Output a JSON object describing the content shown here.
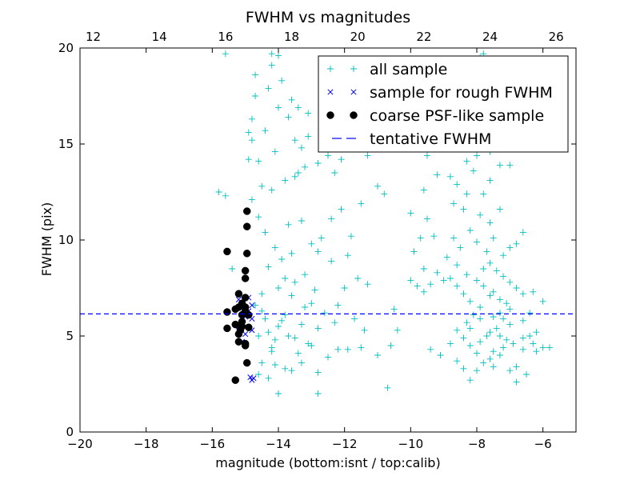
{
  "chart_data": {
    "type": "scatter",
    "title": "FWHM vs magnitudes",
    "xlabel": "magnitude (bottom:isnt / top:calib)",
    "ylabel": "FWHM (pix)",
    "xlim": [
      -20,
      -5
    ],
    "ylim": [
      0,
      20
    ],
    "x_ticks": [
      -20,
      -18,
      -16,
      -14,
      -12,
      -10,
      -8,
      -6
    ],
    "x_tick_labels": [
      "−20",
      "−18",
      "−16",
      "−14",
      "−12",
      "−10",
      "−8",
      "−6"
    ],
    "y_ticks": [
      0,
      5,
      10,
      15,
      20
    ],
    "y_tick_labels": [
      "0",
      "5",
      "10",
      "15",
      "20"
    ],
    "top_axis": {
      "ticks": [
        12,
        14,
        16,
        18,
        20,
        22,
        24,
        26
      ],
      "tick_labels": [
        "12",
        "14",
        "16",
        "18",
        "20",
        "22",
        "24",
        "26"
      ],
      "offset": 31.6
    },
    "grid": false,
    "legend_position": "upper-right",
    "reference_line": {
      "name": "tentative FWHM",
      "y": 6.15,
      "color": "#0000ff",
      "style": "dashed"
    },
    "series": [
      {
        "name": "all sample",
        "marker": "plus",
        "color": "#00bfbf",
        "points": [
          [
            -14.0,
            5.5
          ],
          [
            -13.8,
            6.1
          ],
          [
            -13.5,
            4.9
          ],
          [
            -13.2,
            6.5
          ],
          [
            -13.9,
            5.8
          ],
          [
            -14.3,
            5.2
          ],
          [
            -14.5,
            6.3
          ],
          [
            -13.7,
            5.0
          ],
          [
            -13.3,
            5.6
          ],
          [
            -13.0,
            6.7
          ],
          [
            -12.8,
            5.4
          ],
          [
            -14.1,
            4.8
          ],
          [
            -13.6,
            7.1
          ],
          [
            -14.4,
            5.9
          ],
          [
            -14.7,
            6.6
          ],
          [
            -13.1,
            4.6
          ],
          [
            -12.6,
            6.2
          ],
          [
            -12.3,
            5.7
          ],
          [
            -14.2,
            4.4
          ],
          [
            -13.4,
            4.1
          ],
          [
            -14.6,
            5.0
          ],
          [
            -14.0,
            7.5
          ],
          [
            -13.8,
            8.0
          ],
          [
            -13.5,
            7.8
          ],
          [
            -14.3,
            8.6
          ],
          [
            -13.2,
            8.2
          ],
          [
            -12.9,
            7.4
          ],
          [
            -14.5,
            7.2
          ],
          [
            -13.9,
            9.0
          ],
          [
            -14.1,
            9.6
          ],
          [
            -13.6,
            9.3
          ],
          [
            -13.0,
            9.8
          ],
          [
            -14.4,
            10.4
          ],
          [
            -13.7,
            10.8
          ],
          [
            -14.6,
            11.2
          ],
          [
            -13.3,
            11.0
          ],
          [
            -14.8,
            12.1
          ],
          [
            -14.2,
            12.6
          ],
          [
            -13.8,
            13.1
          ],
          [
            -13.4,
            13.5
          ],
          [
            -14.6,
            14.1
          ],
          [
            -14.1,
            14.6
          ],
          [
            -13.5,
            15.2
          ],
          [
            -14.4,
            15.7
          ],
          [
            -14.8,
            16.3
          ],
          [
            -14.0,
            16.9
          ],
          [
            -13.6,
            17.3
          ],
          [
            -14.3,
            17.9
          ],
          [
            -14.7,
            18.6
          ],
          [
            -14.2,
            19.1
          ],
          [
            -14.0,
            19.6
          ],
          [
            -14.2,
            19.7
          ],
          [
            -13.9,
            18.3
          ],
          [
            -14.7,
            17.5
          ],
          [
            -15.6,
            19.7
          ],
          [
            -15.8,
            12.5
          ],
          [
            -15.6,
            12.3
          ],
          [
            -15.4,
            8.5
          ],
          [
            -14.9,
            15.6
          ],
          [
            -14.8,
            15.2
          ],
          [
            -14.9,
            14.2
          ],
          [
            -14.5,
            12.8
          ],
          [
            -13.3,
            14.8
          ],
          [
            -13.1,
            15.4
          ],
          [
            -12.8,
            14.0
          ],
          [
            -13.2,
            13.8
          ],
          [
            -13.5,
            13.3
          ],
          [
            -13.1,
            16.6
          ],
          [
            -13.4,
            16.9
          ],
          [
            -13.7,
            16.4
          ],
          [
            -12.5,
            14.4
          ],
          [
            -12.3,
            13.5
          ],
          [
            -12.1,
            14.2
          ],
          [
            -11.6,
            15.2
          ],
          [
            -11.3,
            14.4
          ],
          [
            -11.0,
            12.8
          ],
          [
            -10.8,
            12.4
          ],
          [
            -11.5,
            11.9
          ],
          [
            -11.8,
            10.2
          ],
          [
            -12.1,
            11.6
          ],
          [
            -12.4,
            11.1
          ],
          [
            -12.7,
            10.1
          ],
          [
            -11.9,
            9.2
          ],
          [
            -11.6,
            8.0
          ],
          [
            -11.3,
            7.7
          ],
          [
            -12.0,
            7.5
          ],
          [
            -12.4,
            8.9
          ],
          [
            -12.8,
            9.4
          ],
          [
            -12.2,
            6.6
          ],
          [
            -11.7,
            5.9
          ],
          [
            -11.4,
            5.3
          ],
          [
            -11.9,
            4.3
          ],
          [
            -12.5,
            3.9
          ],
          [
            -12.8,
            3.1
          ],
          [
            -13.3,
            3.6
          ],
          [
            -13.8,
            3.3
          ],
          [
            -14.1,
            3.5
          ],
          [
            -14.3,
            2.8
          ],
          [
            -14.0,
            2.0
          ],
          [
            -12.8,
            2.0
          ],
          [
            -13.6,
            3.2
          ],
          [
            -14.6,
            3.0
          ],
          [
            -14.5,
            3.6
          ],
          [
            -14.2,
            4.2
          ],
          [
            -13.0,
            4.5
          ],
          [
            -12.2,
            4.3
          ],
          [
            -11.5,
            4.4
          ],
          [
            -11.0,
            4.0
          ],
          [
            -10.6,
            4.5
          ],
          [
            -10.7,
            2.3
          ],
          [
            -10.4,
            5.3
          ],
          [
            -10.5,
            6.4
          ],
          [
            -10.0,
            7.9
          ],
          [
            -9.8,
            7.6
          ],
          [
            -9.6,
            8.5
          ],
          [
            -9.9,
            9.4
          ],
          [
            -9.7,
            10.1
          ],
          [
            -10.0,
            11.4
          ],
          [
            -9.5,
            11.1
          ],
          [
            -9.3,
            10.2
          ],
          [
            -9.6,
            12.6
          ],
          [
            -9.2,
            13.4
          ],
          [
            -9.5,
            14.4
          ],
          [
            -9.0,
            14.8
          ],
          [
            -8.8,
            13.3
          ],
          [
            -8.6,
            12.9
          ],
          [
            -8.7,
            11.9
          ],
          [
            -8.4,
            11.6
          ],
          [
            -8.3,
            12.4
          ],
          [
            -8.1,
            13.6
          ],
          [
            -7.8,
            12.4
          ],
          [
            -7.6,
            13.1
          ],
          [
            -7.3,
            13.9
          ],
          [
            -7.0,
            13.9
          ],
          [
            -7.6,
            14.6
          ],
          [
            -8.0,
            14.4
          ],
          [
            -8.3,
            14.1
          ],
          [
            -8.6,
            15.1
          ],
          [
            -7.8,
            15.8
          ],
          [
            -7.9,
            11.3
          ],
          [
            -7.6,
            10.9
          ],
          [
            -7.3,
            11.6
          ],
          [
            -7.5,
            10.1
          ],
          [
            -7.0,
            9.6
          ],
          [
            -7.2,
            9.2
          ],
          [
            -6.8,
            9.8
          ],
          [
            -6.6,
            10.4
          ],
          [
            -7.7,
            9.4
          ],
          [
            -8.0,
            9.9
          ],
          [
            -8.2,
            10.5
          ],
          [
            -8.5,
            9.6
          ],
          [
            -8.7,
            10.1
          ],
          [
            -8.9,
            9.1
          ],
          [
            -8.6,
            8.7
          ],
          [
            -8.3,
            8.2
          ],
          [
            -8.0,
            7.9
          ],
          [
            -7.8,
            7.6
          ],
          [
            -7.5,
            7.3
          ],
          [
            -7.6,
            7.1
          ],
          [
            -7.3,
            6.9
          ],
          [
            -7.1,
            6.7
          ],
          [
            -7.0,
            6.4
          ],
          [
            -7.3,
            6.2
          ],
          [
            -7.5,
            6.0
          ],
          [
            -7.2,
            5.9
          ],
          [
            -7.0,
            5.6
          ],
          [
            -7.4,
            5.4
          ],
          [
            -7.6,
            5.2
          ],
          [
            -7.3,
            5.0
          ],
          [
            -7.1,
            4.8
          ],
          [
            -6.9,
            4.6
          ],
          [
            -7.2,
            4.4
          ],
          [
            -7.5,
            4.2
          ],
          [
            -7.3,
            4.0
          ],
          [
            -7.6,
            3.8
          ],
          [
            -7.8,
            3.6
          ],
          [
            -8.0,
            4.1
          ],
          [
            -8.2,
            4.5
          ],
          [
            -8.4,
            4.9
          ],
          [
            -8.6,
            5.3
          ],
          [
            -8.3,
            5.7
          ],
          [
            -8.1,
            6.1
          ],
          [
            -7.9,
            6.5
          ],
          [
            -8.2,
            6.8
          ],
          [
            -8.4,
            7.2
          ],
          [
            -8.6,
            7.6
          ],
          [
            -8.8,
            8.0
          ],
          [
            -9.0,
            7.9
          ],
          [
            -9.2,
            8.3
          ],
          [
            -9.4,
            7.7
          ],
          [
            -9.6,
            7.3
          ],
          [
            -7.8,
            8.5
          ],
          [
            -7.6,
            8.8
          ],
          [
            -7.4,
            8.4
          ],
          [
            -7.2,
            8.1
          ],
          [
            -7.0,
            7.8
          ],
          [
            -6.8,
            7.5
          ],
          [
            -6.6,
            7.2
          ],
          [
            -6.4,
            5.0
          ],
          [
            -6.3,
            4.6
          ],
          [
            -6.2,
            4.2
          ],
          [
            -6.0,
            4.4
          ],
          [
            -6.2,
            5.2
          ],
          [
            -6.6,
            4.9
          ],
          [
            -6.8,
            3.4
          ],
          [
            -6.5,
            3.0
          ],
          [
            -6.8,
            2.6
          ],
          [
            -7.5,
            3.4
          ],
          [
            -8.0,
            3.2
          ],
          [
            -8.2,
            2.7
          ],
          [
            -8.4,
            3.3
          ],
          [
            -8.6,
            3.7
          ],
          [
            -9.1,
            4.0
          ],
          [
            -9.4,
            4.3
          ],
          [
            -8.8,
            4.6
          ],
          [
            -7.0,
            3.2
          ],
          [
            -6.6,
            4.3
          ],
          [
            -5.8,
            4.4
          ],
          [
            -7.9,
            5.9
          ],
          [
            -8.2,
            5.4
          ],
          [
            -7.7,
            5.0
          ],
          [
            -7.9,
            4.7
          ],
          [
            -6.6,
            5.8
          ],
          [
            -6.4,
            6.2
          ],
          [
            -6.0,
            6.8
          ],
          [
            -6.3,
            7.3
          ],
          [
            -7.8,
            19.7
          ],
          [
            -7.9,
            19.5
          ]
        ]
      },
      {
        "name": "sample for rough FWHM",
        "marker": "x",
        "color": "#0000ff",
        "points": [
          [
            -15.1,
            6.5
          ],
          [
            -15.2,
            5.5
          ],
          [
            -15.0,
            5.1
          ],
          [
            -14.9,
            6.3
          ],
          [
            -14.8,
            5.3
          ],
          [
            -15.1,
            4.7
          ],
          [
            -14.9,
            7.0
          ],
          [
            -15.0,
            6.0
          ],
          [
            -15.2,
            6.9
          ],
          [
            -14.8,
            6.6
          ],
          [
            -14.8,
            5.9
          ],
          [
            -14.8,
            2.7
          ],
          [
            -14.75,
            2.8
          ],
          [
            -14.85,
            2.85
          ]
        ]
      },
      {
        "name": "coarse PSF-like sample",
        "marker": "circle",
        "color": "#000000",
        "points": [
          [
            -15.55,
            9.4
          ],
          [
            -14.95,
            11.5
          ],
          [
            -14.95,
            10.7
          ],
          [
            -14.95,
            9.3
          ],
          [
            -15.0,
            8.4
          ],
          [
            -15.0,
            8.0
          ],
          [
            -15.2,
            7.2
          ],
          [
            -15.1,
            6.7
          ],
          [
            -15.0,
            6.5
          ],
          [
            -15.2,
            6.5
          ],
          [
            -15.3,
            6.4
          ],
          [
            -15.55,
            6.25
          ],
          [
            -15.1,
            6.1
          ],
          [
            -15.0,
            6.3
          ],
          [
            -15.3,
            5.6
          ],
          [
            -15.15,
            5.3
          ],
          [
            -15.55,
            5.4
          ],
          [
            -15.2,
            5.1
          ],
          [
            -15.1,
            5.5
          ],
          [
            -14.9,
            5.45
          ],
          [
            -15.2,
            4.7
          ],
          [
            -15.0,
            4.6
          ],
          [
            -15.0,
            4.5
          ],
          [
            -14.95,
            3.6
          ],
          [
            -15.3,
            2.7
          ],
          [
            -15.0,
            7.0
          ],
          [
            -14.9,
            6.1
          ],
          [
            -15.1,
            5.75
          ]
        ]
      }
    ]
  }
}
